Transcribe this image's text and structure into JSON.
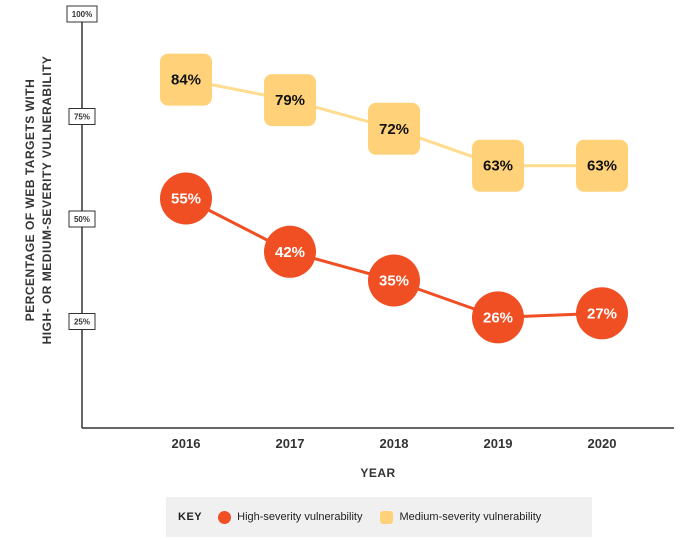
{
  "chart_data": {
    "type": "line",
    "categories": [
      "2016",
      "2017",
      "2018",
      "2019",
      "2020"
    ],
    "series": [
      {
        "name": "Medium-severity vulnerability",
        "values": [
          84,
          79,
          72,
          63,
          63
        ],
        "labels": [
          "84%",
          "79%",
          "72%",
          "63%",
          "63%"
        ],
        "color": "#ffd27a",
        "line_color": "#ffdc8f",
        "marker": "rounded-square"
      },
      {
        "name": "High-severity vulnerability",
        "values": [
          55,
          42,
          35,
          26,
          27
        ],
        "labels": [
          "55%",
          "42%",
          "35%",
          "26%",
          "27%"
        ],
        "color": "#f04e23",
        "line_color": "#f04e23",
        "marker": "circle"
      }
    ],
    "yticks": [
      {
        "value": 100,
        "label": "100%"
      },
      {
        "value": 75,
        "label": "75%"
      },
      {
        "value": 50,
        "label": "50%"
      },
      {
        "value": 25,
        "label": "25%"
      }
    ],
    "ylim": [
      0,
      100
    ],
    "xlabel": "YEAR",
    "ylabel_lines": [
      "PERCENTAGE OF WEB TARGETS WITH",
      "HIGH- OR MEDIUM-SEVERITY VULNERABILITY"
    ],
    "grid": false,
    "legend": {
      "position": "bottom",
      "title": "KEY",
      "items": [
        "High-severity vulnerability",
        "Medium-severity vulnerability"
      ]
    }
  }
}
